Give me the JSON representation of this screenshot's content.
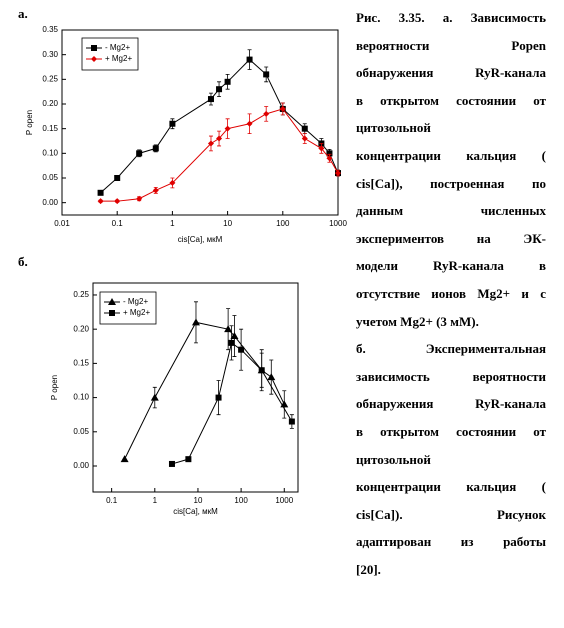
{
  "panel_labels": [
    "а.",
    "б."
  ],
  "chart_data": [
    {
      "type": "line",
      "x_label": "cis[Ca], мкМ",
      "y_label": "P open",
      "xscale": "log",
      "xlim": [
        0.01,
        1000
      ],
      "xticks": [
        0.01,
        0.1,
        1,
        10,
        100,
        1000
      ],
      "ylim": [
        -0.025,
        0.35
      ],
      "yticks": [
        {
          "value": 0,
          "label": "0.00"
        },
        0.05,
        {
          "value": 0.1,
          "label": "0.10"
        },
        0.15,
        {
          "value": 0.2,
          "label": "0.20"
        },
        0.25,
        {
          "value": 0.3,
          "label": "0.30"
        },
        0.35
      ],
      "legend": "upper left",
      "series": [
        {
          "name": "- Mg2+",
          "color": "#000000",
          "marker": "square",
          "x": [
            0.05,
            0.1,
            0.25,
            0.5,
            1,
            5,
            7,
            10,
            25,
            50,
            100,
            250,
            500,
            700,
            1000
          ],
          "values": [
            0.02,
            0.05,
            0.1,
            0.11,
            0.16,
            0.21,
            0.23,
            0.245,
            0.29,
            0.26,
            0.19,
            0.15,
            0.12,
            0.1,
            0.06
          ],
          "errors": [
            0.003,
            0.004,
            0.007,
            0.007,
            0.01,
            0.012,
            0.015,
            0.015,
            0.02,
            0.015,
            0.012,
            0.01,
            0.01,
            0.008,
            0.006
          ]
        },
        {
          "name": "+ Mg2+",
          "color": "#e00000",
          "marker": "diamond",
          "x": [
            0.05,
            0.1,
            0.25,
            0.5,
            1,
            5,
            7,
            10,
            25,
            50,
            100,
            250,
            500,
            700,
            1000
          ],
          "values": [
            0.003,
            0.003,
            0.008,
            0.025,
            0.04,
            0.12,
            0.13,
            0.15,
            0.16,
            0.18,
            0.19,
            0.13,
            0.11,
            0.09,
            0.06
          ],
          "errors": [
            0.002,
            0.002,
            0.004,
            0.006,
            0.01,
            0.015,
            0.015,
            0.02,
            0.02,
            0.015,
            0.012,
            0.01,
            0.01,
            0.008,
            0.006
          ]
        }
      ]
    },
    {
      "type": "line",
      "x_label": "cis[Ca], мкМ",
      "y_label": "P open",
      "xscale": "log",
      "xlim": [
        0.037,
        2080
      ],
      "xticks": [
        0.1,
        1,
        10,
        100,
        1000
      ],
      "ylim": [
        -0.038,
        0.2675
      ],
      "yticks": [
        {
          "value": 0,
          "label": "0.00"
        },
        0.05,
        {
          "value": 0.1,
          "label": "0.10"
        },
        0.15,
        {
          "value": 0.2,
          "label": "0.20"
        },
        0.25
      ],
      "legend": "upper left",
      "series": [
        {
          "name": "- Mg2+",
          "color": "#000000",
          "marker": "triangle",
          "x": [
            0.2,
            1,
            9,
            50,
            70,
            300,
            500,
            1000
          ],
          "values": [
            0.01,
            0.1,
            0.21,
            0.2,
            0.19,
            0.14,
            0.13,
            0.09
          ],
          "errors": [
            0,
            0.015,
            0.03,
            0.03,
            0.03,
            0.03,
            0.025,
            0.02
          ]
        },
        {
          "name": "+ Mg2+",
          "color": "#000000",
          "marker": "square",
          "x": [
            2.5,
            6,
            30,
            60,
            100,
            300,
            1500
          ],
          "values": [
            0.003,
            0.01,
            0.1,
            0.18,
            0.17,
            0.14,
            0.065
          ],
          "errors": [
            0,
            0,
            0.025,
            0.025,
            0.03,
            0.025,
            0.01
          ]
        }
      ]
    }
  ],
  "caption": [
    "Рис. 3.35. а. Зависимость",
    "вероятности Popen",
    "обнаружения RyR-канала",
    "в открытом состоянии от",
    "цитозольной",
    "концентрации кальция (",
    "cis[Ca]), построенная по",
    "данным численных",
    "экспериментов на ЭК-",
    "модели RyR-канала в",
    "отсутствие ионов Mg2+ и с",
    "учетом Mg2+ (3 мМ).",
    "б. Экспериментальная",
    "зависимость вероятности",
    "обнаружения RyR-канала",
    "в открытом состоянии от",
    "цитозольной",
    "концентрации кальция (",
    "cis[Ca]). Рисунок",
    "адаптирован из работы",
    "[20]."
  ]
}
